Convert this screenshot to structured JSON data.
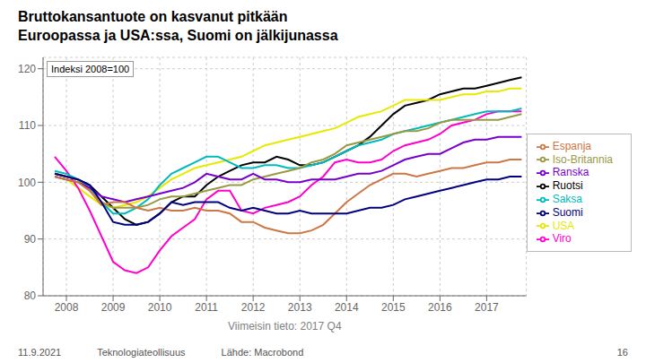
{
  "chart_data": {
    "type": "line",
    "title": "Bruttokansantuote on kasvanut pitkään",
    "subtitle": "Euroopassa ja USA:ssa, Suomi on jälkijunassa",
    "annotations": [
      "Indeksi 2008=100",
      "11.9.2021",
      "Teknologiateollisuus",
      "Lähde: Macrobond",
      "16"
    ],
    "xlabel": "Viimeisin tieto: 2017 Q4",
    "xlim": [
      2007.5,
      2017.85
    ],
    "ylim": [
      80,
      122
    ],
    "xticks": [
      2008,
      2009,
      2010,
      2011,
      2012,
      2013,
      2014,
      2015,
      2016,
      2017
    ],
    "yticks": [
      80,
      90,
      100,
      110,
      120
    ],
    "grid": true,
    "legend": "right",
    "x": [
      2007.75,
      2008.0,
      2008.25,
      2008.5,
      2008.75,
      2009.0,
      2009.25,
      2009.5,
      2009.75,
      2010.0,
      2010.25,
      2010.5,
      2010.75,
      2011.0,
      2011.25,
      2011.5,
      2011.75,
      2012.0,
      2012.25,
      2012.5,
      2012.75,
      2013.0,
      2013.25,
      2013.5,
      2013.75,
      2014.0,
      2014.25,
      2014.5,
      2014.75,
      2015.0,
      2015.25,
      2015.5,
      2015.75,
      2016.0,
      2016.25,
      2016.5,
      2016.75,
      2017.0,
      2017.25,
      2017.5,
      2017.75
    ],
    "series": [
      {
        "name": "Ruotsi",
        "color": "#000000",
        "values": [
          101.5,
          101.0,
          100.5,
          99.5,
          97.5,
          95.5,
          93.5,
          92.5,
          93.0,
          94.5,
          96.5,
          97.5,
          97.5,
          99.5,
          101.0,
          102.0,
          103.0,
          103.5,
          103.5,
          104.5,
          104.0,
          103.0,
          103.0,
          103.5,
          104.5,
          105.5,
          106.5,
          108.0,
          110.0,
          112.0,
          113.5,
          114.0,
          114.5,
          115.5,
          116.0,
          116.5,
          116.5,
          117.0,
          117.5,
          118.0,
          118.5
        ]
      },
      {
        "name": "USA",
        "color": "#e8e800",
        "values": [
          101.0,
          100.5,
          99.0,
          97.5,
          96.0,
          95.5,
          96.0,
          96.5,
          97.5,
          99.0,
          100.5,
          101.5,
          102.5,
          103.0,
          103.5,
          104.0,
          104.5,
          105.5,
          106.5,
          107.0,
          107.5,
          108.0,
          108.5,
          109.0,
          109.5,
          110.5,
          111.5,
          112.0,
          112.5,
          113.5,
          114.5,
          114.5,
          114.5,
          114.5,
          115.0,
          115.5,
          115.5,
          116.0,
          116.0,
          116.5,
          116.5
        ]
      },
      {
        "name": "Viro",
        "color": "#ff00cc",
        "values": [
          104.5,
          102.0,
          99.0,
          95.0,
          90.5,
          86.0,
          84.5,
          84.0,
          85.0,
          88.0,
          90.5,
          92.0,
          93.5,
          97.0,
          98.5,
          98.5,
          95.0,
          94.5,
          95.5,
          96.0,
          96.5,
          97.5,
          99.5,
          101.0,
          103.5,
          104.0,
          103.5,
          103.5,
          104.0,
          105.5,
          106.5,
          107.0,
          107.5,
          108.5,
          110.0,
          110.5,
          111.0,
          112.0,
          112.5,
          112.5,
          112.5
        ]
      },
      {
        "name": "Saksa",
        "color": "#00bbbb",
        "values": [
          102.0,
          101.5,
          100.5,
          99.0,
          96.5,
          94.5,
          94.5,
          95.5,
          97.0,
          99.5,
          101.5,
          102.5,
          103.5,
          104.5,
          104.5,
          103.5,
          102.5,
          102.5,
          103.0,
          103.0,
          102.5,
          102.5,
          103.0,
          103.5,
          104.5,
          105.5,
          106.5,
          107.0,
          107.5,
          108.5,
          109.0,
          109.5,
          110.0,
          110.5,
          111.0,
          111.5,
          112.0,
          112.5,
          112.5,
          112.5,
          113.0
        ]
      },
      {
        "name": "Iso-Britannia",
        "color": "#999944",
        "values": [
          101.5,
          101.0,
          100.5,
          98.5,
          96.5,
          95.5,
          95.5,
          95.5,
          96.0,
          97.0,
          97.5,
          97.5,
          98.0,
          98.5,
          99.0,
          99.5,
          99.5,
          100.5,
          101.0,
          101.5,
          102.0,
          102.5,
          103.5,
          104.0,
          105.0,
          106.5,
          107.0,
          107.5,
          108.0,
          108.5,
          109.0,
          109.0,
          109.5,
          110.5,
          111.0,
          111.0,
          111.0,
          111.0,
          111.0,
          111.5,
          112.0
        ]
      },
      {
        "name": "Ranska",
        "color": "#7700cc",
        "values": [
          101.0,
          100.5,
          100.0,
          99.0,
          97.5,
          97.0,
          96.5,
          97.0,
          97.5,
          98.0,
          98.5,
          99.0,
          100.0,
          101.5,
          101.0,
          100.5,
          100.5,
          101.5,
          100.5,
          100.5,
          100.0,
          100.0,
          100.5,
          100.5,
          100.5,
          101.0,
          101.5,
          101.5,
          102.0,
          103.0,
          104.0,
          104.5,
          105.0,
          105.0,
          106.0,
          107.0,
          107.5,
          107.5,
          108.0,
          108.0,
          108.0
        ]
      },
      {
        "name": "Espanja",
        "color": "#cc7744",
        "values": [
          101.0,
          100.5,
          100.0,
          98.5,
          96.0,
          96.5,
          96.5,
          95.5,
          95.0,
          95.5,
          95.0,
          95.0,
          95.5,
          95.0,
          95.0,
          94.5,
          93.0,
          93.0,
          92.0,
          91.5,
          91.0,
          91.0,
          91.5,
          92.5,
          94.5,
          96.5,
          98.0,
          99.5,
          100.5,
          101.5,
          101.5,
          101.0,
          101.5,
          102.0,
          102.5,
          102.5,
          103.0,
          103.5,
          103.5,
          104.0,
          104.0
        ]
      },
      {
        "name": "Suomi",
        "color": "#000080",
        "values": [
          101.5,
          101.0,
          100.5,
          99.5,
          96.5,
          93.0,
          92.5,
          92.5,
          93.0,
          94.5,
          96.5,
          96.0,
          96.5,
          96.5,
          96.5,
          95.5,
          95.0,
          95.5,
          95.0,
          94.5,
          94.5,
          95.0,
          94.5,
          94.5,
          94.5,
          94.5,
          95.0,
          95.5,
          95.5,
          96.0,
          97.0,
          97.5,
          98.0,
          98.5,
          99.0,
          99.5,
          100.0,
          100.5,
          100.5,
          101.0,
          101.0
        ]
      }
    ]
  }
}
